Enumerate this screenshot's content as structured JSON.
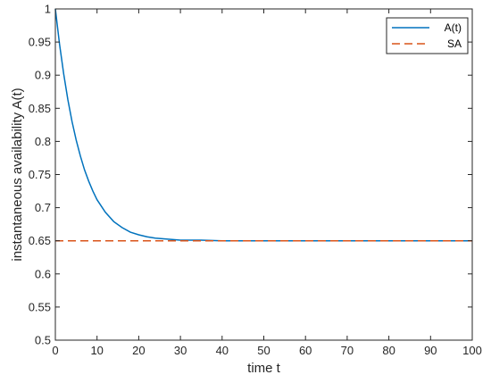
{
  "chart_data": {
    "type": "line",
    "xlabel": "time t",
    "ylabel": "instantaneous availability A(t)",
    "xlim": [
      0,
      100
    ],
    "ylim": [
      0.5,
      1
    ],
    "x_ticks": [
      "0",
      "10",
      "20",
      "30",
      "40",
      "50",
      "60",
      "70",
      "80",
      "90",
      "100"
    ],
    "y_ticks": [
      "0.5",
      "0.55",
      "0.6",
      "0.65",
      "0.7",
      "0.75",
      "0.8",
      "0.85",
      "0.9",
      "0.95",
      "1"
    ],
    "grid": false,
    "legend_position": "top-right",
    "series": [
      {
        "name": "A(t)",
        "color": "#0072BD",
        "style": "solid",
        "x": [
          0,
          1,
          2,
          3,
          4,
          5,
          6,
          7,
          8,
          9,
          10,
          12,
          14,
          16,
          18,
          20,
          22,
          24,
          26,
          28,
          30,
          35,
          40,
          50,
          60,
          70,
          80,
          90,
          100
        ],
        "y": [
          1.0,
          0.947,
          0.902,
          0.863,
          0.83,
          0.802,
          0.778,
          0.757,
          0.74,
          0.725,
          0.712,
          0.693,
          0.679,
          0.67,
          0.663,
          0.659,
          0.656,
          0.654,
          0.653,
          0.652,
          0.651,
          0.651,
          0.65,
          0.65,
          0.65,
          0.65,
          0.65,
          0.65,
          0.65
        ]
      },
      {
        "name": "SA",
        "color": "#D95319",
        "style": "dashed",
        "x": [
          0,
          100
        ],
        "y": [
          0.65,
          0.65
        ]
      }
    ]
  }
}
